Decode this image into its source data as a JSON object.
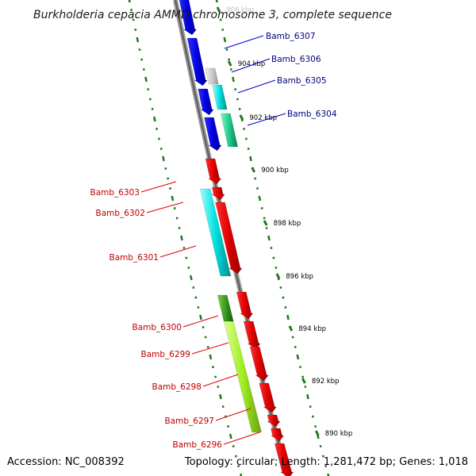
{
  "title": "Burkholderia cepacia AMMD chromosome 3, complete sequence",
  "footer": {
    "accession": "Accession: NC_008392",
    "topology": "Topology: circular; Length: 1,281,472 bp; Genes: 1,018"
  },
  "ticks": [
    {
      "label": "906 kbp"
    },
    {
      "label": "904 kbp"
    },
    {
      "label": "902 kbp"
    },
    {
      "label": "900 kbp"
    },
    {
      "label": "898 kbp"
    },
    {
      "label": "896 kbp"
    },
    {
      "label": "894 kbp"
    },
    {
      "label": "892 kbp"
    },
    {
      "label": "890 kbp"
    }
  ],
  "genes_forward": [
    {
      "label": "Bamb_6307"
    },
    {
      "label": "Bamb_6306"
    },
    {
      "label": "Bamb_6305"
    },
    {
      "label": "Bamb_6304"
    }
  ],
  "genes_reverse": [
    {
      "label": "Bamb_6303"
    },
    {
      "label": "Bamb_6302"
    },
    {
      "label": "Bamb_6301"
    },
    {
      "label": "Bamb_6300"
    },
    {
      "label": "Bamb_6299"
    },
    {
      "label": "Bamb_6298"
    },
    {
      "label": "Bamb_6297"
    },
    {
      "label": "Bamb_6296"
    }
  ],
  "colors": {
    "forward_strand": "#0000ee",
    "reverse_strand": "#ee0000",
    "forward_label": "#000080",
    "reverse_label": "#c00000",
    "backbone": "#808080",
    "gc_ticks": "#1a7a1a",
    "cyan_feature": "#00e0e0",
    "teal_feature": "#22cc88",
    "green_feature": "#99ee22"
  }
}
